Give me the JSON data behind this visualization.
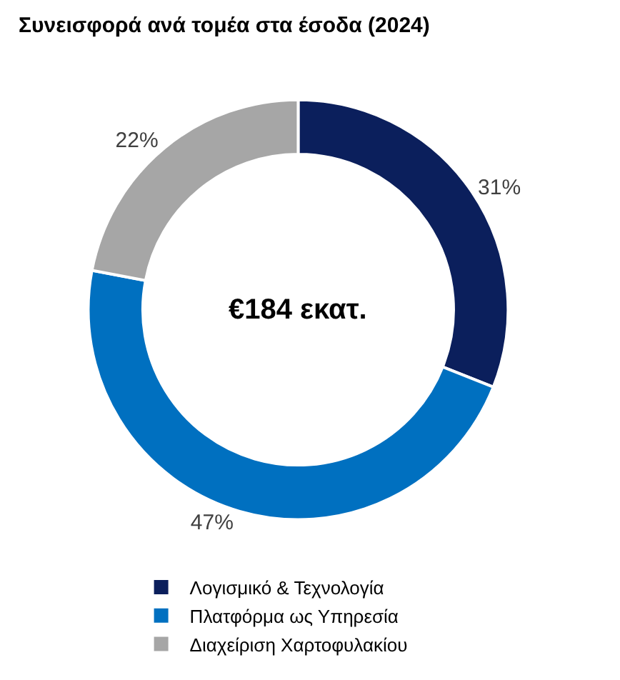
{
  "chart_data": {
    "type": "donut",
    "title": "Συνεισφορά ανά τομέα στα έσοδα (2024)",
    "categories": [
      "Λογισμικό & Τεχνολογία",
      "Πλατφόρμα ως Υπηρεσία",
      "Διαχείριση Χαρτοφυλακίου"
    ],
    "values": [
      31,
      47,
      22
    ],
    "value_labels": [
      "31%",
      "47%",
      "22%"
    ],
    "colors": [
      "#0b1f5c",
      "#0070c0",
      "#a6a6a6"
    ],
    "annotations": [
      "€184 εκατ."
    ],
    "legend": "bottom"
  }
}
